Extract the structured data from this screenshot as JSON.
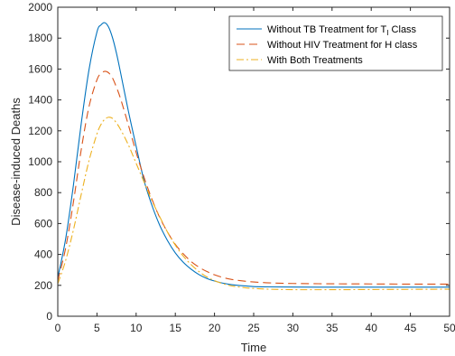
{
  "chart_data": {
    "type": "line",
    "title": "",
    "xlabel": "Time",
    "ylabel": "Disease-induced Deaths",
    "xlim": [
      0,
      50
    ],
    "ylim": [
      0,
      2000
    ],
    "xticks": [
      0,
      5,
      10,
      15,
      20,
      25,
      30,
      35,
      40,
      45,
      50
    ],
    "yticks": [
      0,
      200,
      400,
      600,
      800,
      1000,
      1200,
      1400,
      1600,
      1800,
      2000
    ],
    "grid": false,
    "legend_position": "top-right",
    "series": [
      {
        "name": "Without TB Treatment for T",
        "name_subscript": "I",
        "name_suffix": " Class",
        "color": "#0072BD",
        "dash": "solid",
        "x": [
          0,
          1,
          2,
          3,
          4,
          5,
          5.5,
          6,
          6.5,
          7,
          7.5,
          8,
          9,
          10,
          11,
          12,
          13,
          14,
          15,
          16,
          17,
          18,
          19,
          20,
          21,
          22,
          23,
          24,
          25,
          27,
          30,
          35,
          40,
          45,
          50
        ],
        "y": [
          250,
          500,
          850,
          1250,
          1600,
          1840,
          1885,
          1900,
          1870,
          1800,
          1700,
          1580,
          1330,
          1100,
          880,
          720,
          590,
          490,
          410,
          350,
          305,
          270,
          245,
          228,
          215,
          206,
          200,
          196,
          192,
          190,
          189,
          188,
          188,
          188,
          188
        ]
      },
      {
        "name": "Without HIV Treatment for H class",
        "color": "#D95319",
        "dash": "dashed",
        "x": [
          0,
          1,
          2,
          3,
          4,
          5,
          5.5,
          6,
          6.5,
          7,
          7.5,
          8,
          9,
          10,
          11,
          12,
          13,
          14,
          15,
          16,
          17,
          18,
          19,
          20,
          21,
          22,
          23,
          24,
          25,
          27,
          30,
          35,
          40,
          45,
          50
        ],
        "y": [
          230,
          440,
          740,
          1080,
          1360,
          1530,
          1570,
          1585,
          1575,
          1540,
          1480,
          1410,
          1240,
          1060,
          900,
          760,
          640,
          545,
          465,
          405,
          355,
          318,
          290,
          268,
          252,
          240,
          232,
          226,
          222,
          216,
          212,
          210,
          209,
          208,
          208
        ]
      },
      {
        "name": "With Both Treatments",
        "color": "#EDB120",
        "dash": "dashdot",
        "x": [
          0,
          1,
          2,
          3,
          4,
          5,
          5.5,
          6,
          6.5,
          7,
          7.5,
          8,
          9,
          10,
          11,
          12,
          13,
          14,
          15,
          16,
          17,
          18,
          19,
          20,
          21,
          22,
          23,
          24,
          25,
          27,
          30,
          35,
          40,
          45,
          50
        ],
        "y": [
          210,
          360,
          560,
          790,
          1010,
          1180,
          1240,
          1275,
          1288,
          1280,
          1250,
          1210,
          1110,
          990,
          870,
          750,
          645,
          545,
          460,
          390,
          335,
          290,
          255,
          230,
          212,
          198,
          190,
          184,
          180,
          175,
          172,
          172,
          173,
          174,
          175
        ]
      }
    ]
  }
}
